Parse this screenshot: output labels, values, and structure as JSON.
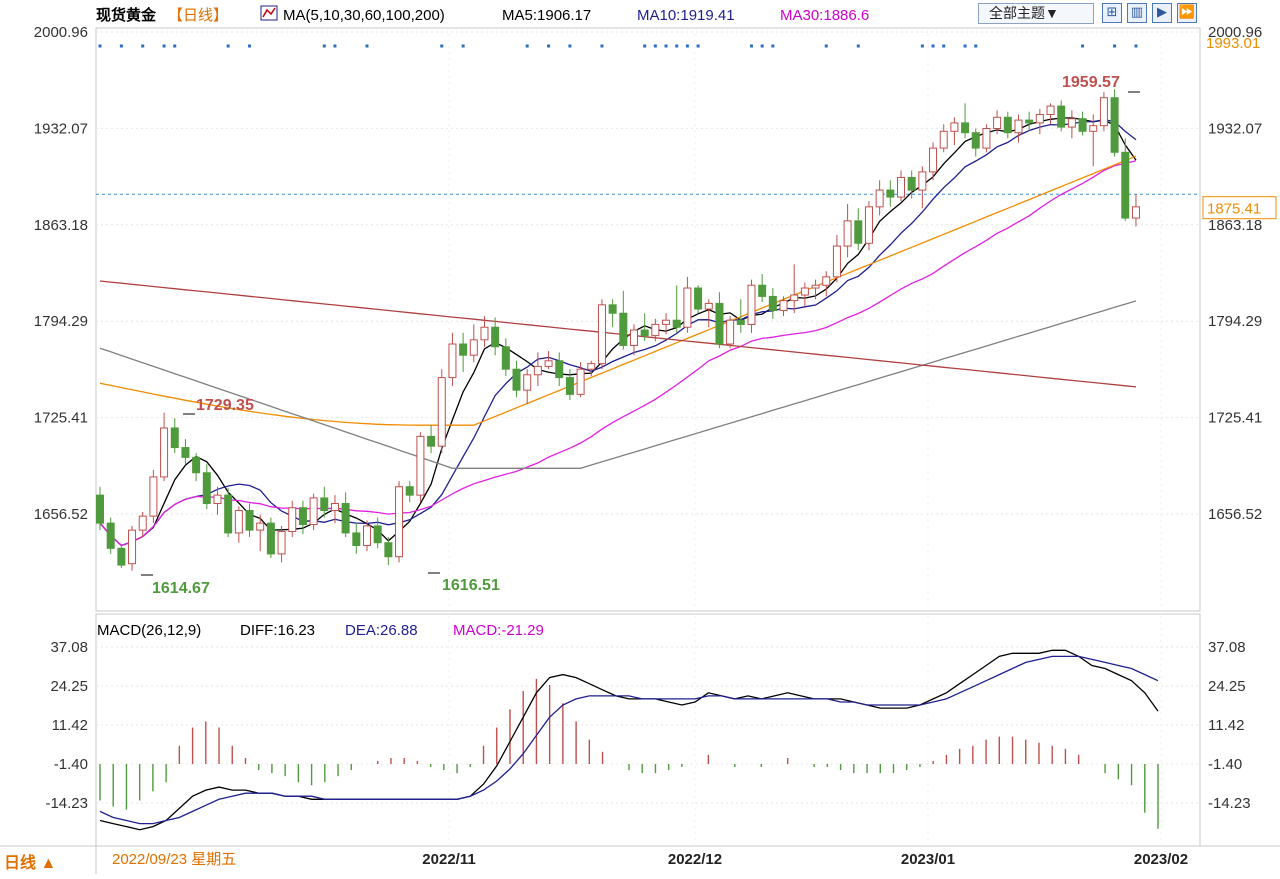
{
  "header": {
    "title": "现货黄金",
    "period_tag": "【日线】",
    "ma_label": "MA(5,10,30,60,100,200)",
    "ma5_text": "MA5:1906.17",
    "ma10_text": "MA10:1919.41",
    "ma30_text": "MA30:1886.6",
    "theme_button": "全部主题▼",
    "icons": [
      "grid-icon",
      "split-panel-icon",
      "forward-icon",
      "fast-forward-icon"
    ]
  },
  "footer": {
    "period_button": "日线 ▲",
    "date_display": "2022/09/23 星期五"
  },
  "colors": {
    "up": "#c0504d",
    "down": "#4f9a3c",
    "ma5": "#000000",
    "ma10": "#1f1f8f",
    "ma30": "#e020e0",
    "ma60": "#f08c00",
    "ma100": "#808080",
    "ma200": "#b04040",
    "grid": "#e6e6e6",
    "axis_text": "#333333",
    "last_price": "#f08c00",
    "dots": "#2a6ebd"
  },
  "chart_data": [
    {
      "type": "candlestick",
      "title": "现货黄金 日线",
      "y_ticks": [
        "2000.96",
        "1932.07",
        "1863.18",
        "1794.29",
        "1725.41",
        "1656.52"
      ],
      "y_range": [
        1590,
        2001
      ],
      "x_ticks": [
        "2022/11",
        "2022/12",
        "2023/01",
        "2023/02"
      ],
      "high_annotation": "1959.57",
      "low_annotations": [
        "1614.67",
        "1616.51"
      ],
      "mid_high_annotation": "1729.35",
      "right_labels": {
        "top": "1993.01",
        "last": "1875.41"
      },
      "last_price": 1875.41,
      "ohlc": [
        [
          1670,
          1676,
          1645,
          1650
        ],
        [
          1650,
          1654,
          1628,
          1632
        ],
        [
          1632,
          1635,
          1618,
          1620
        ],
        [
          1621,
          1648,
          1616,
          1645
        ],
        [
          1645,
          1658,
          1640,
          1655
        ],
        [
          1655,
          1688,
          1650,
          1683
        ],
        [
          1683,
          1729,
          1680,
          1718
        ],
        [
          1718,
          1725,
          1700,
          1704
        ],
        [
          1704,
          1710,
          1692,
          1697
        ],
        [
          1697,
          1700,
          1680,
          1686
        ],
        [
          1686,
          1692,
          1660,
          1664
        ],
        [
          1664,
          1676,
          1656,
          1670
        ],
        [
          1670,
          1675,
          1640,
          1643
        ],
        [
          1643,
          1662,
          1636,
          1659
        ],
        [
          1659,
          1664,
          1640,
          1645
        ],
        [
          1645,
          1656,
          1630,
          1650
        ],
        [
          1650,
          1654,
          1625,
          1628
        ],
        [
          1628,
          1648,
          1622,
          1644
        ],
        [
          1644,
          1666,
          1640,
          1661
        ],
        [
          1661,
          1666,
          1642,
          1649
        ],
        [
          1649,
          1671,
          1645,
          1668
        ],
        [
          1668,
          1676,
          1654,
          1659
        ],
        [
          1659,
          1670,
          1650,
          1664
        ],
        [
          1664,
          1672,
          1640,
          1643
        ],
        [
          1643,
          1650,
          1628,
          1634
        ],
        [
          1634,
          1652,
          1630,
          1648
        ],
        [
          1648,
          1654,
          1632,
          1636
        ],
        [
          1636,
          1640,
          1620,
          1626
        ],
        [
          1626,
          1680,
          1622,
          1676
        ],
        [
          1676,
          1680,
          1665,
          1670
        ],
        [
          1670,
          1715,
          1665,
          1712
        ],
        [
          1712,
          1720,
          1700,
          1705
        ],
        [
          1705,
          1760,
          1700,
          1754
        ],
        [
          1754,
          1786,
          1748,
          1778
        ],
        [
          1778,
          1786,
          1758,
          1770
        ],
        [
          1770,
          1792,
          1765,
          1781
        ],
        [
          1781,
          1798,
          1776,
          1790
        ],
        [
          1790,
          1797,
          1770,
          1776
        ],
        [
          1776,
          1782,
          1755,
          1760
        ],
        [
          1760,
          1766,
          1740,
          1745
        ],
        [
          1745,
          1760,
          1735,
          1756
        ],
        [
          1756,
          1772,
          1748,
          1762
        ],
        [
          1762,
          1773,
          1760,
          1766
        ],
        [
          1766,
          1772,
          1748,
          1754
        ],
        [
          1754,
          1760,
          1738,
          1742
        ],
        [
          1742,
          1765,
          1740,
          1760
        ],
        [
          1760,
          1766,
          1755,
          1764
        ],
        [
          1764,
          1810,
          1760,
          1806
        ],
        [
          1806,
          1810,
          1790,
          1800
        ],
        [
          1800,
          1816,
          1774,
          1777
        ],
        [
          1777,
          1792,
          1770,
          1788
        ],
        [
          1788,
          1800,
          1780,
          1784
        ],
        [
          1784,
          1796,
          1780,
          1792
        ],
        [
          1792,
          1800,
          1785,
          1795
        ],
        [
          1795,
          1820,
          1786,
          1790
        ],
        [
          1790,
          1826,
          1786,
          1818
        ],
        [
          1818,
          1820,
          1800,
          1803
        ],
        [
          1803,
          1810,
          1790,
          1807
        ],
        [
          1807,
          1815,
          1775,
          1778
        ],
        [
          1778,
          1798,
          1775,
          1795
        ],
        [
          1795,
          1810,
          1786,
          1792
        ],
        [
          1792,
          1824,
          1786,
          1820
        ],
        [
          1820,
          1828,
          1808,
          1812
        ],
        [
          1812,
          1818,
          1796,
          1802
        ],
        [
          1802,
          1812,
          1798,
          1809
        ],
        [
          1809,
          1835,
          1800,
          1813
        ],
        [
          1813,
          1822,
          1805,
          1818
        ],
        [
          1818,
          1824,
          1810,
          1820
        ],
        [
          1820,
          1830,
          1812,
          1826
        ],
        [
          1826,
          1856,
          1822,
          1848
        ],
        [
          1848,
          1878,
          1840,
          1866
        ],
        [
          1866,
          1875,
          1845,
          1850
        ],
        [
          1850,
          1880,
          1845,
          1876
        ],
        [
          1876,
          1895,
          1870,
          1888
        ],
        [
          1888,
          1895,
          1876,
          1883
        ],
        [
          1883,
          1902,
          1880,
          1897
        ],
        [
          1897,
          1902,
          1882,
          1888
        ],
        [
          1888,
          1905,
          1875,
          1901
        ],
        [
          1901,
          1922,
          1895,
          1918
        ],
        [
          1918,
          1935,
          1915,
          1930
        ],
        [
          1930,
          1940,
          1920,
          1936
        ],
        [
          1936,
          1950,
          1925,
          1929
        ],
        [
          1929,
          1932,
          1912,
          1918
        ],
        [
          1918,
          1935,
          1915,
          1932
        ],
        [
          1932,
          1945,
          1928,
          1940
        ],
        [
          1940,
          1944,
          1925,
          1929
        ],
        [
          1929,
          1942,
          1922,
          1938
        ],
        [
          1938,
          1944,
          1930,
          1936
        ],
        [
          1936,
          1946,
          1928,
          1942
        ],
        [
          1942,
          1950,
          1935,
          1948
        ],
        [
          1948,
          1952,
          1930,
          1933
        ],
        [
          1933,
          1945,
          1925,
          1939
        ],
        [
          1939,
          1944,
          1927,
          1930
        ],
        [
          1930,
          1942,
          1905,
          1934
        ],
        [
          1934,
          1958,
          1930,
          1954
        ],
        [
          1954,
          1960,
          1912,
          1915
        ],
        [
          1915,
          1925,
          1866,
          1868
        ],
        [
          1868,
          1885,
          1862,
          1876
        ]
      ]
    },
    {
      "type": "macd",
      "title": "MACD(26,12,9)",
      "diff_text": "DIFF:16.23",
      "dea_text": "DEA:26.88",
      "macd_text": "MACD:-21.29",
      "y_ticks": [
        "37.08",
        "24.25",
        "11.42",
        "-1.40",
        "-14.23"
      ],
      "y_range": [
        -23,
        44
      ],
      "diff": [
        -20,
        -21,
        -22,
        -23,
        -22,
        -20,
        -16,
        -12,
        -10,
        -9,
        -10,
        -10,
        -11,
        -11,
        -12,
        -12,
        -13,
        -13,
        -13,
        -13,
        -13,
        -13,
        -13,
        -13,
        -13,
        -13,
        -13,
        -13,
        -12,
        -8,
        -2,
        6,
        14,
        22,
        27,
        28,
        27,
        25,
        23,
        21,
        20,
        20,
        20,
        19,
        18,
        19,
        22,
        21,
        20,
        21,
        20,
        21,
        22,
        21,
        20,
        20,
        20,
        19,
        18,
        17,
        17,
        17,
        18,
        20,
        22,
        25,
        28,
        31,
        34,
        35,
        35,
        35,
        36,
        36,
        34,
        31,
        30,
        28,
        26,
        22,
        16
      ],
      "dea": [
        -17,
        -19,
        -20,
        -21,
        -21,
        -20,
        -19,
        -17,
        -15,
        -13,
        -12,
        -11,
        -11,
        -11,
        -12,
        -12,
        -12,
        -13,
        -13,
        -13,
        -13,
        -13,
        -13,
        -13,
        -13,
        -13,
        -13,
        -13,
        -12,
        -10,
        -7,
        -3,
        2,
        8,
        14,
        18,
        20,
        21,
        21,
        21,
        21,
        20,
        20,
        20,
        20,
        20,
        21,
        21,
        20,
        20,
        20,
        20,
        20,
        20,
        20,
        20,
        19,
        19,
        18,
        18,
        18,
        18,
        18,
        19,
        20,
        22,
        24,
        26,
        28,
        30,
        32,
        33,
        34,
        34,
        34,
        33,
        32,
        31,
        30,
        28,
        26
      ],
      "macd": [
        -12,
        -14,
        -15,
        -12,
        -9,
        -6,
        6,
        12,
        14,
        12,
        6,
        2,
        -2,
        -3,
        -4,
        -6,
        -7,
        -6,
        -4,
        -2,
        0,
        1,
        2,
        2,
        1,
        -1,
        -2,
        -3,
        -1,
        6,
        12,
        18,
        24,
        28,
        26,
        20,
        14,
        8,
        4,
        0,
        -2,
        -3,
        -3,
        -2,
        -1,
        0,
        3,
        0,
        -1,
        0,
        -1,
        0,
        2,
        0,
        -1,
        -1,
        -2,
        -3,
        -3,
        -3,
        -3,
        -2,
        -1,
        1,
        3,
        5,
        6,
        8,
        9,
        9,
        8,
        7,
        6,
        5,
        3,
        0,
        -3,
        -5,
        -7,
        -16,
        -21.29
      ]
    }
  ]
}
